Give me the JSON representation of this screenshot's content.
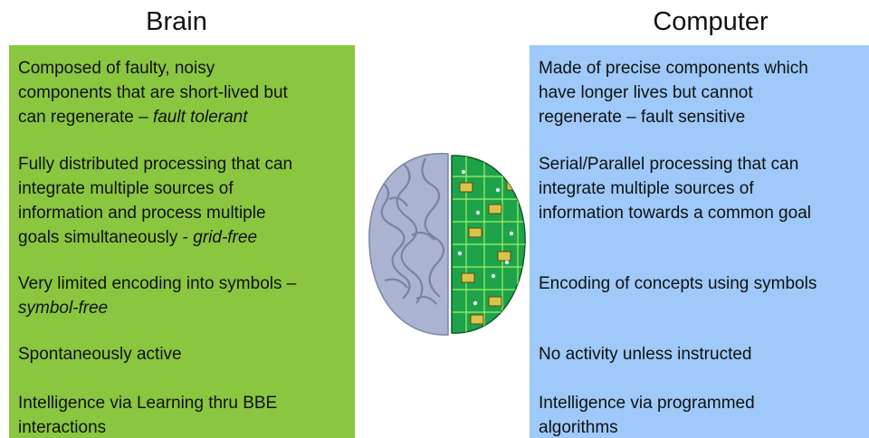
{
  "left": {
    "title": "Brain",
    "items": [
      [
        [
          {
            "text": "Composed of faulty, noisy"
          }
        ],
        [
          {
            "text": "components that are short-lived but"
          }
        ],
        [
          {
            "text": "can regenerate – "
          },
          {
            "text": "fault tolerant",
            "italic": true
          }
        ]
      ],
      [
        [
          {
            "text": "Fully distributed processing that can"
          }
        ],
        [
          {
            "text": "integrate multiple sources of"
          }
        ],
        [
          {
            "text": "information and process multiple"
          }
        ],
        [
          {
            "text": "goals simultaneously - "
          },
          {
            "text": "grid-free",
            "italic": true
          }
        ]
      ],
      [
        [
          {
            "text": "Very limited encoding into symbols –"
          }
        ],
        [
          {
            "text": "symbol-free",
            "italic": true
          }
        ]
      ],
      [
        [
          {
            "text": "Spontaneously active"
          }
        ]
      ],
      [
        [
          {
            "text": "Intelligence via Learning thru BBE"
          }
        ],
        [
          {
            "text": "interactions"
          }
        ]
      ]
    ]
  },
  "right": {
    "title": "Computer",
    "items": [
      [
        [
          {
            "text": "Made of precise components which"
          }
        ],
        [
          {
            "text": "have longer lives but cannot"
          }
        ],
        [
          {
            "text": "regenerate – fault sensitive"
          }
        ]
      ],
      [
        [
          {
            "text": "Serial/Parallel processing that can"
          }
        ],
        [
          {
            "text": "integrate multiple sources of"
          }
        ],
        [
          {
            "text": "information towards a common goal"
          }
        ]
      ],
      [
        [
          {
            "text": "Encoding of concepts using symbols"
          }
        ]
      ],
      [
        [
          {
            "text": "No activity unless instructed"
          }
        ]
      ],
      [
        [
          {
            "text": "Intelligence via programmed"
          }
        ],
        [
          {
            "text": "algorithms"
          }
        ]
      ]
    ]
  }
}
